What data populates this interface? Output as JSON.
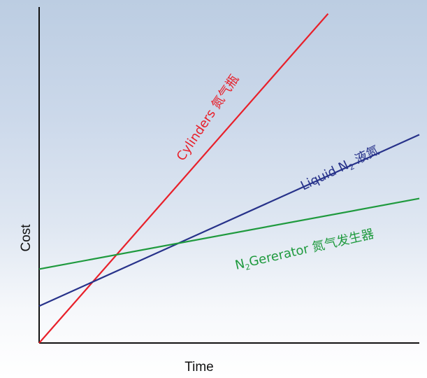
{
  "chart_data": {
    "type": "line",
    "title": "",
    "xlabel": "Time",
    "ylabel": "Cost",
    "xlim": [
      0,
      100
    ],
    "ylim": [
      0,
      100
    ],
    "grid": false,
    "ticks_shown": false,
    "series": [
      {
        "key": "cylinders",
        "label_parts": [
          "Cylinders 氮气瓶"
        ],
        "color": "#e8202a",
        "x": [
          0,
          76
        ],
        "y": [
          0,
          98
        ]
      },
      {
        "key": "liquid",
        "label_parts": [
          "Liquid N",
          "2",
          " 液氮"
        ],
        "color": "#27328a",
        "x": [
          0,
          100
        ],
        "y": [
          11,
          62
        ]
      },
      {
        "key": "generator",
        "label_parts": [
          "N",
          "2",
          "Gererator 氮气发生器"
        ],
        "color": "#1f9a3e",
        "x": [
          0,
          100
        ],
        "y": [
          22,
          43
        ]
      }
    ]
  }
}
